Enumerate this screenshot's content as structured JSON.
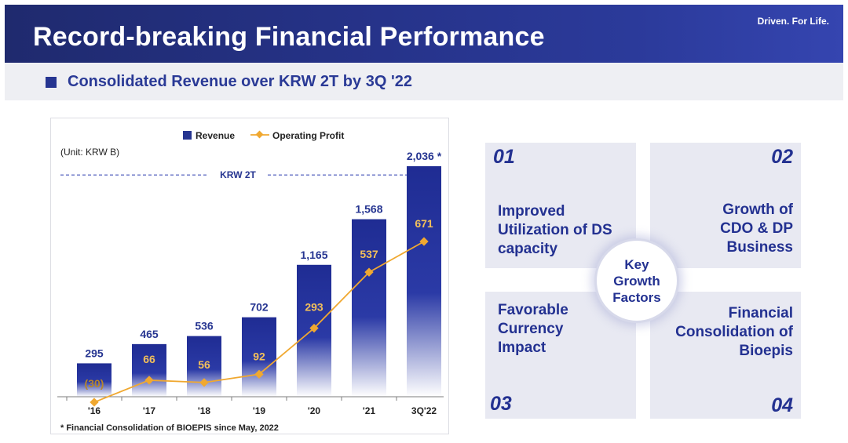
{
  "header": {
    "title": "Record-breaking Financial Performance",
    "tagline": "Driven. For Life."
  },
  "subheader": {
    "text": "Consolidated Revenue over KRW 2T by 3Q '22"
  },
  "colors": {
    "brand_navy": "#263591",
    "operating_profit_line": "#f0a830",
    "operating_profit_label": "#f3c05a"
  },
  "chart_data": {
    "type": "bar",
    "unit_label": "(Unit: KRW B)",
    "legend": [
      "Revenue",
      "Operating Profit"
    ],
    "legend_placement": "top-center",
    "categories": [
      "'16",
      "'17",
      "'18",
      "'19",
      "'20",
      "'21",
      "3Q'22"
    ],
    "series": [
      {
        "name": "Revenue",
        "type": "bar",
        "values": [
          295,
          465,
          536,
          702,
          1165,
          1568,
          2036
        ],
        "labels": [
          "295",
          "465",
          "536",
          "702",
          "1,165",
          "1,568",
          "2,036 *"
        ]
      },
      {
        "name": "Operating Profit",
        "type": "line",
        "values": [
          -30,
          66,
          56,
          92,
          293,
          537,
          671
        ],
        "labels": [
          "(30)",
          "66",
          "56",
          "92",
          "293",
          "537",
          "671"
        ]
      }
    ],
    "reference_line": {
      "label": "KRW 2T",
      "value": 2000
    },
    "ylim": [
      0,
      2200
    ],
    "grid": false,
    "footnote": "* Financial Consolidation of BIOEPIS since May, 2022"
  },
  "factors": {
    "center": "Key Growth Factors",
    "items": [
      {
        "num": "01",
        "text": "Improved Utilization of DS capacity"
      },
      {
        "num": "02",
        "text": "Growth of CDO & DP Business"
      },
      {
        "num": "03",
        "text": "Favorable Currency Impact"
      },
      {
        "num": "04",
        "text": "Financial Consolidation of Bioepis"
      }
    ]
  }
}
